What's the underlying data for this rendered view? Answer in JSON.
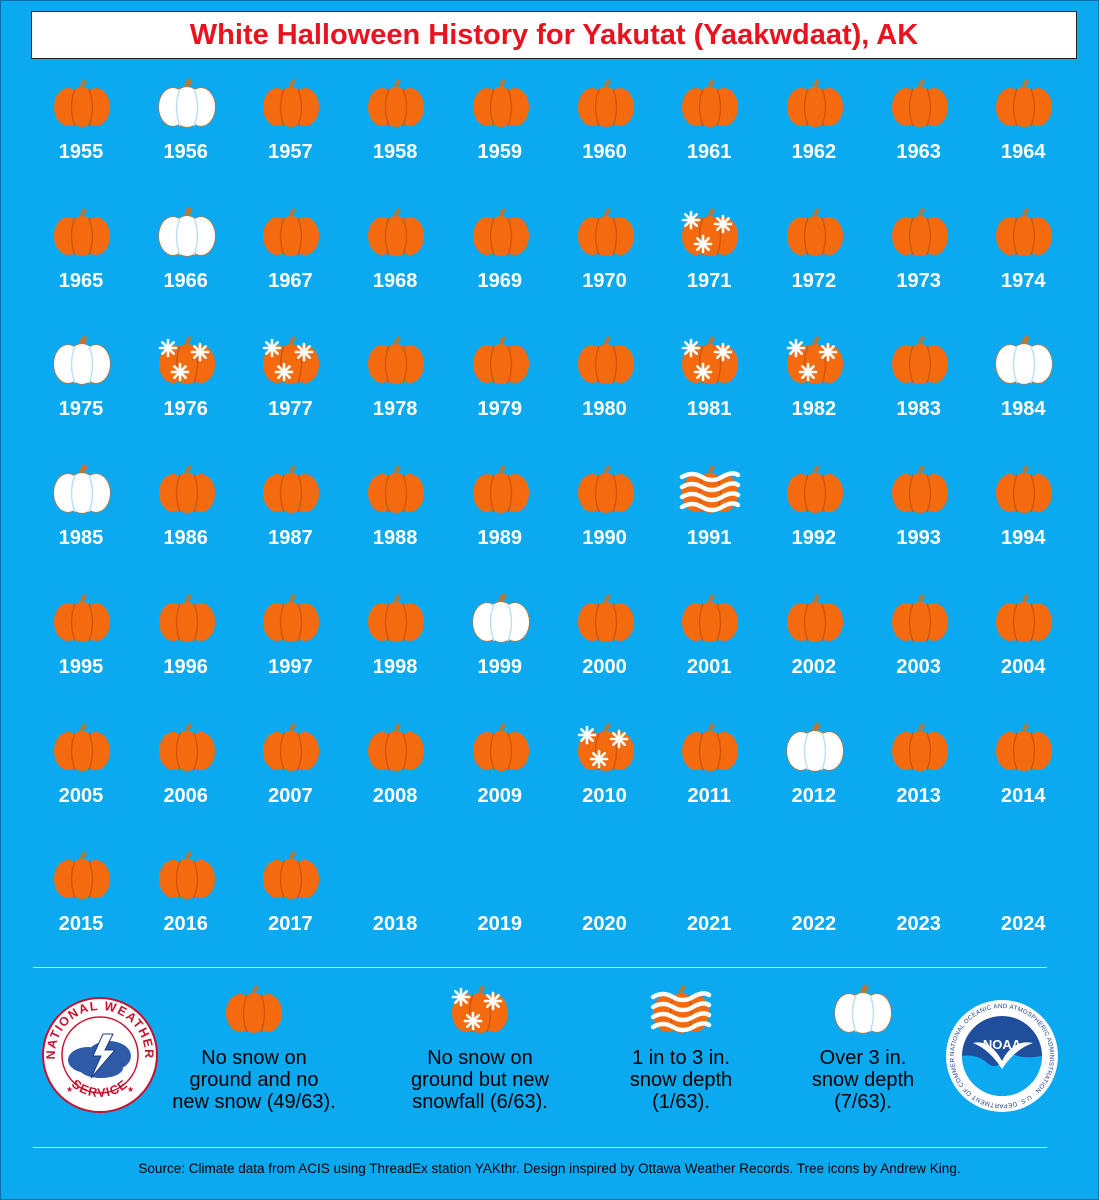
{
  "title": "White Halloween History for Yakutat (Yaakwdaat), AK",
  "colors": {
    "background": "#0ba9f0",
    "title_text": "#e8131f",
    "pumpkin_orange": "#f46a0f",
    "pumpkin_white": "#ffffff",
    "year_text": "#ffffff"
  },
  "years": [
    {
      "year": "1955",
      "category": "none"
    },
    {
      "year": "1956",
      "category": "deep"
    },
    {
      "year": "1957",
      "category": "none"
    },
    {
      "year": "1958",
      "category": "none"
    },
    {
      "year": "1959",
      "category": "none"
    },
    {
      "year": "1960",
      "category": "none"
    },
    {
      "year": "1961",
      "category": "none"
    },
    {
      "year": "1962",
      "category": "none"
    },
    {
      "year": "1963",
      "category": "none"
    },
    {
      "year": "1964",
      "category": "none"
    },
    {
      "year": "1965",
      "category": "none"
    },
    {
      "year": "1966",
      "category": "deep"
    },
    {
      "year": "1967",
      "category": "none"
    },
    {
      "year": "1968",
      "category": "none"
    },
    {
      "year": "1969",
      "category": "none"
    },
    {
      "year": "1970",
      "category": "none"
    },
    {
      "year": "1971",
      "category": "new"
    },
    {
      "year": "1972",
      "category": "none"
    },
    {
      "year": "1973",
      "category": "none"
    },
    {
      "year": "1974",
      "category": "none"
    },
    {
      "year": "1975",
      "category": "deep"
    },
    {
      "year": "1976",
      "category": "new"
    },
    {
      "year": "1977",
      "category": "new"
    },
    {
      "year": "1978",
      "category": "none"
    },
    {
      "year": "1979",
      "category": "none"
    },
    {
      "year": "1980",
      "category": "none"
    },
    {
      "year": "1981",
      "category": "new"
    },
    {
      "year": "1982",
      "category": "new"
    },
    {
      "year": "1983",
      "category": "none"
    },
    {
      "year": "1984",
      "category": "deep"
    },
    {
      "year": "1985",
      "category": "deep"
    },
    {
      "year": "1986",
      "category": "none"
    },
    {
      "year": "1987",
      "category": "none"
    },
    {
      "year": "1988",
      "category": "none"
    },
    {
      "year": "1989",
      "category": "none"
    },
    {
      "year": "1990",
      "category": "none"
    },
    {
      "year": "1991",
      "category": "light"
    },
    {
      "year": "1992",
      "category": "none"
    },
    {
      "year": "1993",
      "category": "none"
    },
    {
      "year": "1994",
      "category": "none"
    },
    {
      "year": "1995",
      "category": "none"
    },
    {
      "year": "1996",
      "category": "none"
    },
    {
      "year": "1997",
      "category": "none"
    },
    {
      "year": "1998",
      "category": "none"
    },
    {
      "year": "1999",
      "category": "deep"
    },
    {
      "year": "2000",
      "category": "none"
    },
    {
      "year": "2001",
      "category": "none"
    },
    {
      "year": "2002",
      "category": "none"
    },
    {
      "year": "2003",
      "category": "none"
    },
    {
      "year": "2004",
      "category": "none"
    },
    {
      "year": "2005",
      "category": "none"
    },
    {
      "year": "2006",
      "category": "none"
    },
    {
      "year": "2007",
      "category": "none"
    },
    {
      "year": "2008",
      "category": "none"
    },
    {
      "year": "2009",
      "category": "none"
    },
    {
      "year": "2010",
      "category": "new"
    },
    {
      "year": "2011",
      "category": "none"
    },
    {
      "year": "2012",
      "category": "deep"
    },
    {
      "year": "2013",
      "category": "none"
    },
    {
      "year": "2014",
      "category": "none"
    },
    {
      "year": "2015",
      "category": "none"
    },
    {
      "year": "2016",
      "category": "none"
    },
    {
      "year": "2017",
      "category": "none"
    },
    {
      "year": "2018",
      "category": ""
    },
    {
      "year": "2019",
      "category": ""
    },
    {
      "year": "2020",
      "category": ""
    },
    {
      "year": "2021",
      "category": ""
    },
    {
      "year": "2022",
      "category": ""
    },
    {
      "year": "2023",
      "category": ""
    },
    {
      "year": "2024",
      "category": ""
    }
  ],
  "legend": {
    "none": {
      "lines": [
        "No snow on",
        "ground and no",
        "new snow (49/63)."
      ]
    },
    "new": {
      "lines": [
        "No snow on",
        "ground but new",
        "snowfall (6/63)."
      ]
    },
    "light": {
      "lines": [
        "1 in to 3 in.",
        "snow depth",
        "(1/63)."
      ]
    },
    "deep": {
      "lines": [
        "Over 3 in.",
        "snow depth",
        "(7/63)."
      ]
    }
  },
  "logos": {
    "nws": {
      "text": "NATIONAL WEATHER SERVICE"
    },
    "noaa": {
      "text": "NOAA",
      "ring_text": "NATIONAL OCEANIC AND ATMOSPHERIC ADMINISTRATION · U.S. DEPARTMENT OF COMMERCE"
    }
  },
  "source": "Source: Climate data from ACIS using ThreadEx station YAKthr. Design inspired by Ottawa Weather Records. Tree icons by Andrew King."
}
